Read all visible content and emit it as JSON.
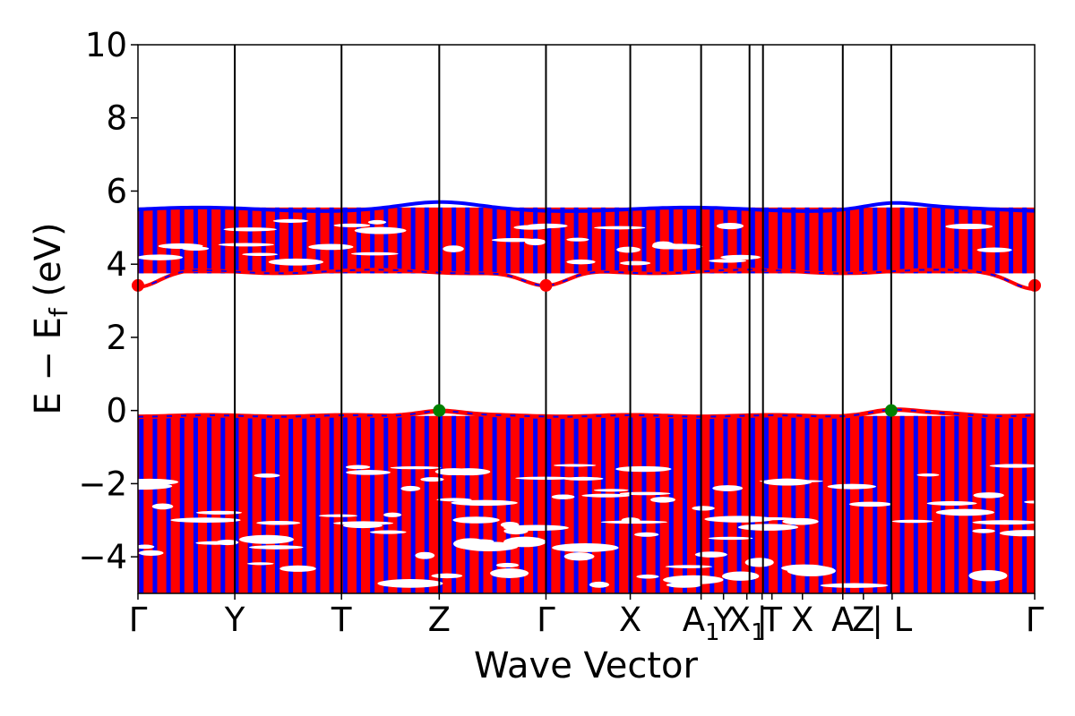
{
  "chart_data": {
    "type": "line",
    "title": "",
    "xlabel": "Wave Vector",
    "ylabel": "E − E",
    "ylabel_subscript": "f",
    "ylabel_unit": "(eV)",
    "ylim": [
      -5,
      10
    ],
    "yticks": [
      -4,
      -2,
      0,
      2,
      4,
      6,
      8,
      10
    ],
    "ytick_labels": [
      "−4",
      "−2",
      "0",
      "2",
      "4",
      "6",
      "8",
      "10"
    ],
    "x_range": [
      0,
      10
    ],
    "kpoint_labels": [
      {
        "text": "Γ",
        "x": 0.0
      },
      {
        "text": "Y",
        "x": 1.08
      },
      {
        "text": "T",
        "x": 2.27
      },
      {
        "text": "Z",
        "x": 3.36
      },
      {
        "text": "Γ",
        "x": 4.55
      },
      {
        "text": "X",
        "x": 5.49
      },
      {
        "text": "A",
        "sub": "1",
        "x": 6.28
      },
      {
        "text": "Y",
        "x": 6.53
      },
      {
        "text": "X",
        "sub": "1",
        "x": 6.79
      },
      {
        "text": "|",
        "x": 6.96
      },
      {
        "text": "T",
        "x": 7.07
      },
      {
        "text": "X",
        "x": 7.41
      },
      {
        "text": "A",
        "x": 7.86
      },
      {
        "text": "Z",
        "x": 8.09
      },
      {
        "text": "| L",
        "x": 8.41
      },
      {
        "text": "Γ",
        "x": 10.0
      }
    ],
    "vertical_lines": [
      1.08,
      2.27,
      3.36,
      4.55,
      5.49,
      6.28,
      6.82,
      6.97,
      7.86,
      8.4
    ],
    "series": [
      {
        "color": "#0000ff"
      },
      {
        "color": "#ff0000"
      }
    ],
    "valence_band": {
      "top": -0.15,
      "bottom": -5,
      "vbm_peaks_x": [
        3.36,
        8.4
      ],
      "vbm_value": 0.0
    },
    "conduction_band": {
      "bottom": 3.85,
      "top": 5.5,
      "cbm_dips_x": [
        0.0,
        4.55,
        10.0
      ],
      "cbm_value": 3.42
    },
    "markers": [
      {
        "name": "CBM",
        "color": "#ff0000",
        "points": [
          [
            0.0,
            3.42
          ],
          [
            4.55,
            3.42
          ],
          [
            10.0,
            3.42
          ]
        ]
      },
      {
        "name": "VBM",
        "color": "#008000",
        "points": [
          [
            3.36,
            0.0
          ],
          [
            8.4,
            0.0
          ]
        ]
      }
    ]
  }
}
